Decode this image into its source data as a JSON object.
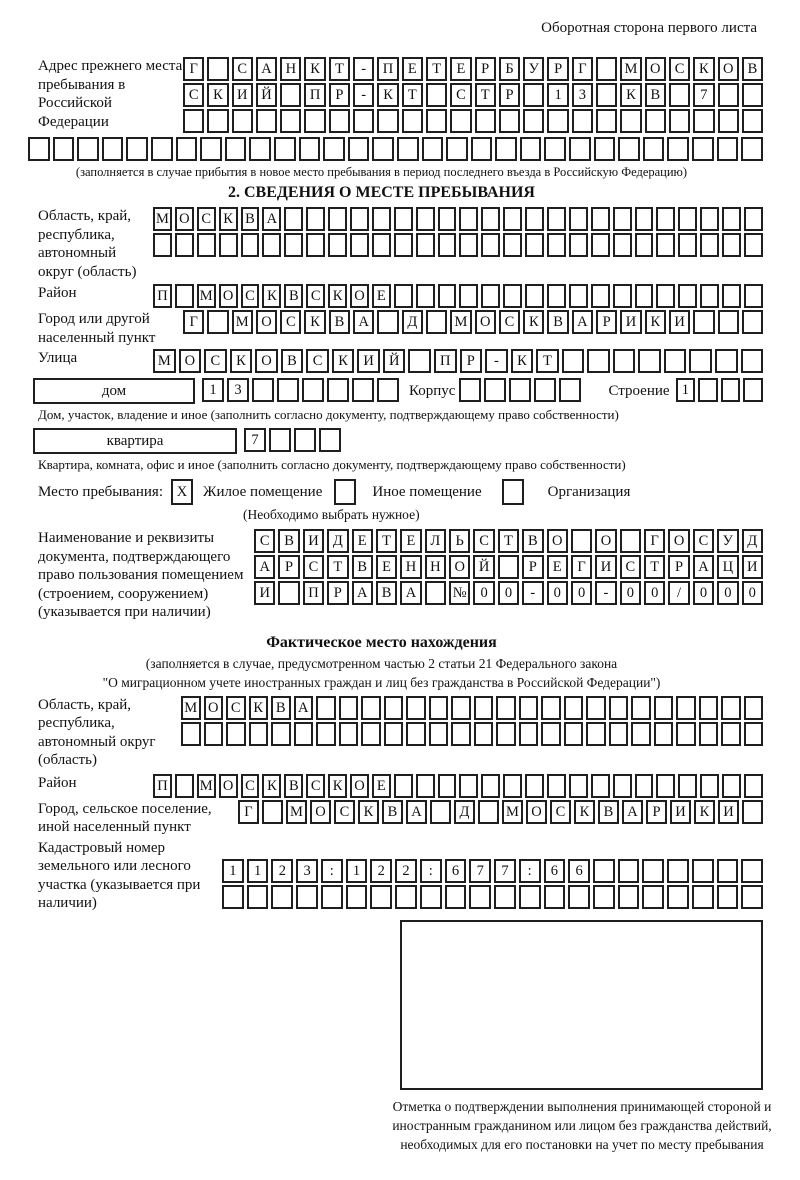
{
  "page": {
    "side_note": "Оборотная сторона первого листа"
  },
  "prev_address": {
    "label": "Адрес прежнего места пребывания в Российской Федерации",
    "row1": {
      "text": "Г САНКТ-ПЕТЕРБУРГ МОСКОВ",
      "len": 24
    },
    "row2": {
      "text": "СКИЙ ПР-КТ СТР 13 КВ 7",
      "len": 24
    },
    "row3": {
      "text": "",
      "len": 24
    },
    "row4": {
      "text": "",
      "len": 30
    },
    "note": "(заполняется в случае прибытия в новое место пребывания в период последнего въезда в Российскую Федерацию)"
  },
  "section2": {
    "title": "2. СВЕДЕНИЯ О МЕСТЕ ПРЕБЫВАНИЯ",
    "region": {
      "label": "Область, край, республика, автономный округ (область)",
      "row1": {
        "text": "МОСКВА",
        "len": 28
      },
      "row2": {
        "text": "",
        "len": 28
      }
    },
    "district": {
      "label": "Район",
      "row": {
        "text": "П МОСКВСКОЕ",
        "len": 28
      }
    },
    "city": {
      "label": "Город или другой населенный пункт",
      "row": {
        "text": "Г МОСКВА Д МОСКВАРИКИ",
        "len": 24
      }
    },
    "street": {
      "label": "Улица",
      "row": {
        "text": "МОСКОВСКИЙ ПР-КТ",
        "len": 24
      }
    },
    "house": {
      "box_label": "дом",
      "cells": {
        "text": "13",
        "len": 8
      },
      "korpus_label": "Корпус",
      "korpus_cells": {
        "text": "",
        "len": 5
      },
      "stroenie_label": "Строение",
      "stroenie_cells": {
        "text": "1",
        "len": 4
      },
      "note": "Дом, участок, владение и иное (заполнить согласно документу, подтверждающему право собственности)"
    },
    "apartment": {
      "box_label": "квартира",
      "cells": {
        "text": "7",
        "len": 4
      },
      "note": "Квартира, комната, офис и иное (заполнить согласно документу, подтверждающему право собственности)"
    },
    "stay_type": {
      "label": "Место пребывания:",
      "options": [
        {
          "mark": "X",
          "label": "Жилое помещение"
        },
        {
          "mark": "",
          "label": "Иное помещение"
        },
        {
          "mark": "",
          "label": "Организация"
        }
      ],
      "note": "(Необходимо выбрать нужное)"
    },
    "doc": {
      "label": "Наименование и реквизиты документа, подтверждающего право пользования помещением (строением, сооружением) (указывается при наличии)",
      "row1": {
        "text": "СВИДЕТЕЛЬСТВО О ГОСУД",
        "len": 21
      },
      "row2": {
        "text": "АРСТВЕННОЙ РЕГИСТРАЦИ",
        "len": 21
      },
      "row3": {
        "text": "И ПРАВА №00-00-00/000",
        "len": 21
      }
    }
  },
  "actual_location": {
    "title": "Фактическое место нахождения",
    "note1": "(заполняется в случае, предусмотренном частью 2 статьи 21 Федерального закона",
    "note2": "\"О миграционном учете иностранных граждан и лиц без гражданства в Российской Федерации\")",
    "region": {
      "label": "Область, край, республика, автономный округ (область)",
      "row1": {
        "text": "МОСКВА",
        "len": 26
      },
      "row2": {
        "text": "",
        "len": 26
      }
    },
    "district": {
      "label": "Район",
      "row": {
        "text": "П МОСКВСКОЕ",
        "len": 28
      }
    },
    "city": {
      "label": "Город, сельское поселение, иной населенный пункт",
      "row": {
        "text": "Г МОСКВА Д МОСКВАРИКИ",
        "len": 22
      }
    },
    "cadastral": {
      "label": "Кадастровый номер земельного или лесного участка (указывается при наличии)",
      "row1": {
        "text": "1123:122:677:66",
        "len": 22
      },
      "row2": {
        "text": "",
        "len": 22
      }
    }
  },
  "confirmation": {
    "caption": "Отметка о подтверждении выполнения принимающей стороной и иностранным гражданином или лицом без гражданства действий, необходимых для его постановки на учет по месту пребывания"
  }
}
